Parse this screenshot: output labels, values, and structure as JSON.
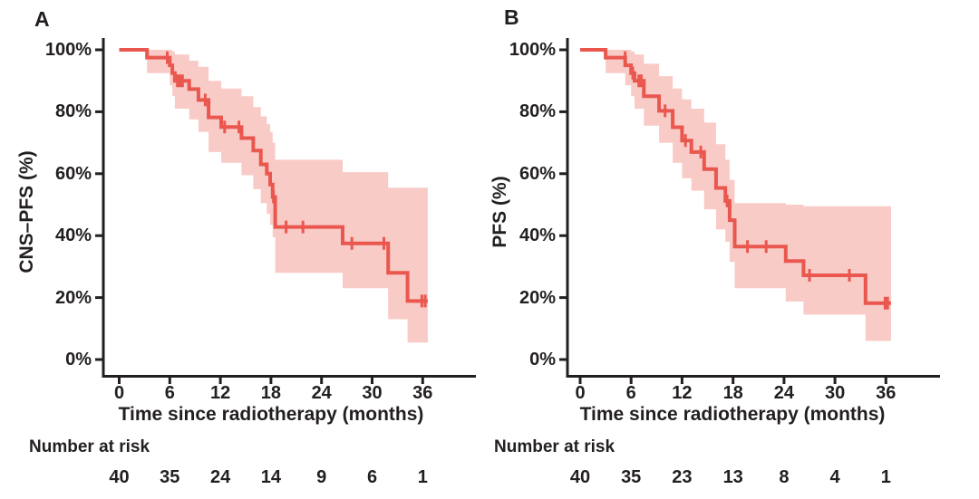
{
  "page": {
    "background": "#ffffff"
  },
  "chart_data": [
    {
      "type": "line",
      "subtype": "kaplan-meier-step-curve-with-confidence-band",
      "panel_letter": "A",
      "ylabel": "CNS–PFS (%)",
      "xlabel": "Time since radiotherapy (months)",
      "xlim": [
        0,
        38
      ],
      "ylim": [
        0,
        100
      ],
      "grid": false,
      "legend": "none",
      "x_ticks": [
        0,
        6,
        12,
        18,
        24,
        30,
        36
      ],
      "y_tick_labels": [
        "0%",
        "20%",
        "40%",
        "60%",
        "80%",
        "100%"
      ],
      "y_tick_values": [
        0,
        20,
        40,
        60,
        80,
        100
      ],
      "number_at_risk_label": "Number at risk",
      "number_at_risk": {
        "times": [
          0,
          6,
          12,
          18,
          24,
          30,
          36
        ],
        "counts": [
          40,
          35,
          24,
          14,
          9,
          6,
          1
        ]
      },
      "survival_steps": [
        [
          0,
          100
        ],
        [
          3.3,
          100
        ],
        [
          3.3,
          97.5
        ],
        [
          6.0,
          97.5
        ],
        [
          6.0,
          95
        ],
        [
          6.3,
          95
        ],
        [
          6.3,
          92.5
        ],
        [
          6.6,
          92.5
        ],
        [
          6.6,
          90
        ],
        [
          8.3,
          90
        ],
        [
          8.3,
          87.3
        ],
        [
          9.4,
          87.3
        ],
        [
          9.4,
          83.8
        ],
        [
          10.6,
          83.8
        ],
        [
          10.6,
          78.2
        ],
        [
          12.1,
          78.2
        ],
        [
          12.1,
          75.1
        ],
        [
          14.5,
          75.1
        ],
        [
          14.5,
          71.5
        ],
        [
          15.9,
          71.5
        ],
        [
          15.9,
          67.5
        ],
        [
          16.8,
          67.5
        ],
        [
          16.8,
          63
        ],
        [
          17.5,
          63
        ],
        [
          17.5,
          60
        ],
        [
          17.9,
          60
        ],
        [
          17.9,
          56.5
        ],
        [
          18.2,
          56.5
        ],
        [
          18.2,
          52.5
        ],
        [
          18.5,
          52.5
        ],
        [
          18.5,
          42.8
        ],
        [
          26.5,
          42.8
        ],
        [
          26.5,
          37.5
        ],
        [
          31.9,
          37.5
        ],
        [
          31.9,
          28
        ],
        [
          34.2,
          28
        ],
        [
          34.2,
          18.9
        ],
        [
          36.6,
          18.9
        ]
      ],
      "censor_marks": [
        [
          5.7,
          97.5
        ],
        [
          6.9,
          90
        ],
        [
          7.2,
          90
        ],
        [
          7.5,
          90
        ],
        [
          10.2,
          83.8
        ],
        [
          12.5,
          75.1
        ],
        [
          14.2,
          75.1
        ],
        [
          18.3,
          52.5
        ],
        [
          19.8,
          42.8
        ],
        [
          21.8,
          42.8
        ],
        [
          27.6,
          37.5
        ],
        [
          31.4,
          37.5
        ],
        [
          35.9,
          18.9
        ],
        [
          36.3,
          18.9
        ]
      ],
      "confidence_band": [
        [
          3.3,
          6.0,
          92.5,
          100
        ],
        [
          6.0,
          6.3,
          88.5,
          100
        ],
        [
          6.3,
          6.6,
          85,
          99.5
        ],
        [
          6.6,
          8.3,
          81,
          98.5
        ],
        [
          8.3,
          9.4,
          77.5,
          96.5
        ],
        [
          9.4,
          10.6,
          73.5,
          94.5
        ],
        [
          10.6,
          12.1,
          67,
          90
        ],
        [
          12.1,
          14.5,
          63.5,
          87.5
        ],
        [
          14.5,
          15.9,
          59.5,
          85
        ],
        [
          15.9,
          16.8,
          55,
          81.5
        ],
        [
          16.8,
          17.5,
          50.5,
          78.5
        ],
        [
          17.5,
          17.9,
          47,
          76
        ],
        [
          17.9,
          18.2,
          43.5,
          73.5
        ],
        [
          18.2,
          18.5,
          39.5,
          70
        ],
        [
          18.5,
          26.5,
          28,
          64.5
        ],
        [
          26.5,
          31.9,
          23,
          60.5
        ],
        [
          31.9,
          34.2,
          13,
          55.5
        ],
        [
          34.2,
          36.6,
          5.5,
          55.5
        ]
      ],
      "line_color": "#e9574f",
      "band_color": "#f9cbc7",
      "axis_color": "#231f20",
      "text_color": "#231f20"
    },
    {
      "type": "line",
      "subtype": "kaplan-meier-step-curve-with-confidence-band",
      "panel_letter": "B",
      "ylabel": "PFS (%)",
      "xlabel": "Time since radiotherapy (months)",
      "xlim": [
        0,
        38
      ],
      "ylim": [
        0,
        100
      ],
      "grid": false,
      "legend": "none",
      "x_ticks": [
        0,
        6,
        12,
        18,
        24,
        30,
        36
      ],
      "y_tick_labels": [
        "0%",
        "20%",
        "40%",
        "60%",
        "80%",
        "100%"
      ],
      "y_tick_values": [
        0,
        20,
        40,
        60,
        80,
        100
      ],
      "number_at_risk_label": "Number at risk",
      "number_at_risk": {
        "times": [
          0,
          6,
          12,
          18,
          24,
          30,
          36
        ],
        "counts": [
          40,
          35,
          23,
          13,
          8,
          4,
          1
        ]
      },
      "survival_steps": [
        [
          0,
          100
        ],
        [
          3.0,
          100
        ],
        [
          3.0,
          97.5
        ],
        [
          5.3,
          97.5
        ],
        [
          5.3,
          95
        ],
        [
          6.0,
          95
        ],
        [
          6.0,
          92.5
        ],
        [
          6.4,
          92.5
        ],
        [
          6.4,
          90
        ],
        [
          7.5,
          90
        ],
        [
          7.5,
          85
        ],
        [
          9.3,
          85
        ],
        [
          9.3,
          80.3
        ],
        [
          10.9,
          80.3
        ],
        [
          10.9,
          75
        ],
        [
          12.0,
          75
        ],
        [
          12.0,
          70.7
        ],
        [
          13.1,
          70.7
        ],
        [
          13.1,
          67
        ],
        [
          14.6,
          67
        ],
        [
          14.6,
          61.5
        ],
        [
          16.0,
          61.5
        ],
        [
          16.0,
          55.4
        ],
        [
          17.1,
          55.4
        ],
        [
          17.1,
          51.2
        ],
        [
          17.6,
          51.2
        ],
        [
          17.6,
          45
        ],
        [
          18.2,
          45
        ],
        [
          18.2,
          36.5
        ],
        [
          24.2,
          36.5
        ],
        [
          24.2,
          31.8
        ],
        [
          26.3,
          31.8
        ],
        [
          26.3,
          27.2
        ],
        [
          33.6,
          27.2
        ],
        [
          33.6,
          18.2
        ],
        [
          36.6,
          18.2
        ]
      ],
      "censor_marks": [
        [
          5.3,
          97.5
        ],
        [
          6.2,
          92.5
        ],
        [
          6.9,
          90
        ],
        [
          7.2,
          90
        ],
        [
          10.0,
          80.3
        ],
        [
          12.4,
          70.7
        ],
        [
          14.2,
          67
        ],
        [
          17.3,
          51.2
        ],
        [
          19.7,
          36.5
        ],
        [
          21.9,
          36.5
        ],
        [
          27.0,
          27.2
        ],
        [
          31.7,
          27.2
        ],
        [
          35.9,
          18.2
        ],
        [
          36.2,
          18.2
        ]
      ],
      "confidence_band": [
        [
          3.0,
          5.3,
          92.5,
          100
        ],
        [
          5.3,
          6.0,
          88.5,
          100
        ],
        [
          6.0,
          6.4,
          85,
          99.5
        ],
        [
          6.4,
          7.5,
          81,
          98.5
        ],
        [
          7.5,
          9.3,
          75.5,
          95.5
        ],
        [
          9.3,
          10.9,
          70,
          91.5
        ],
        [
          10.9,
          12.0,
          63.5,
          87.5
        ],
        [
          12.0,
          13.1,
          58.5,
          84
        ],
        [
          13.1,
          14.6,
          54.5,
          81
        ],
        [
          14.6,
          16.0,
          48.5,
          76.5
        ],
        [
          16.0,
          17.1,
          42,
          69.5
        ],
        [
          17.1,
          17.6,
          38,
          64.5
        ],
        [
          17.6,
          18.2,
          31.5,
          58
        ],
        [
          18.2,
          24.2,
          23,
          50.5
        ],
        [
          24.2,
          26.3,
          18.7,
          50
        ],
        [
          26.3,
          33.6,
          14.5,
          49.5
        ],
        [
          33.6,
          36.6,
          6,
          49.5
        ]
      ],
      "line_color": "#e9574f",
      "band_color": "#f9cbc7",
      "axis_color": "#231f20",
      "text_color": "#231f20"
    }
  ]
}
